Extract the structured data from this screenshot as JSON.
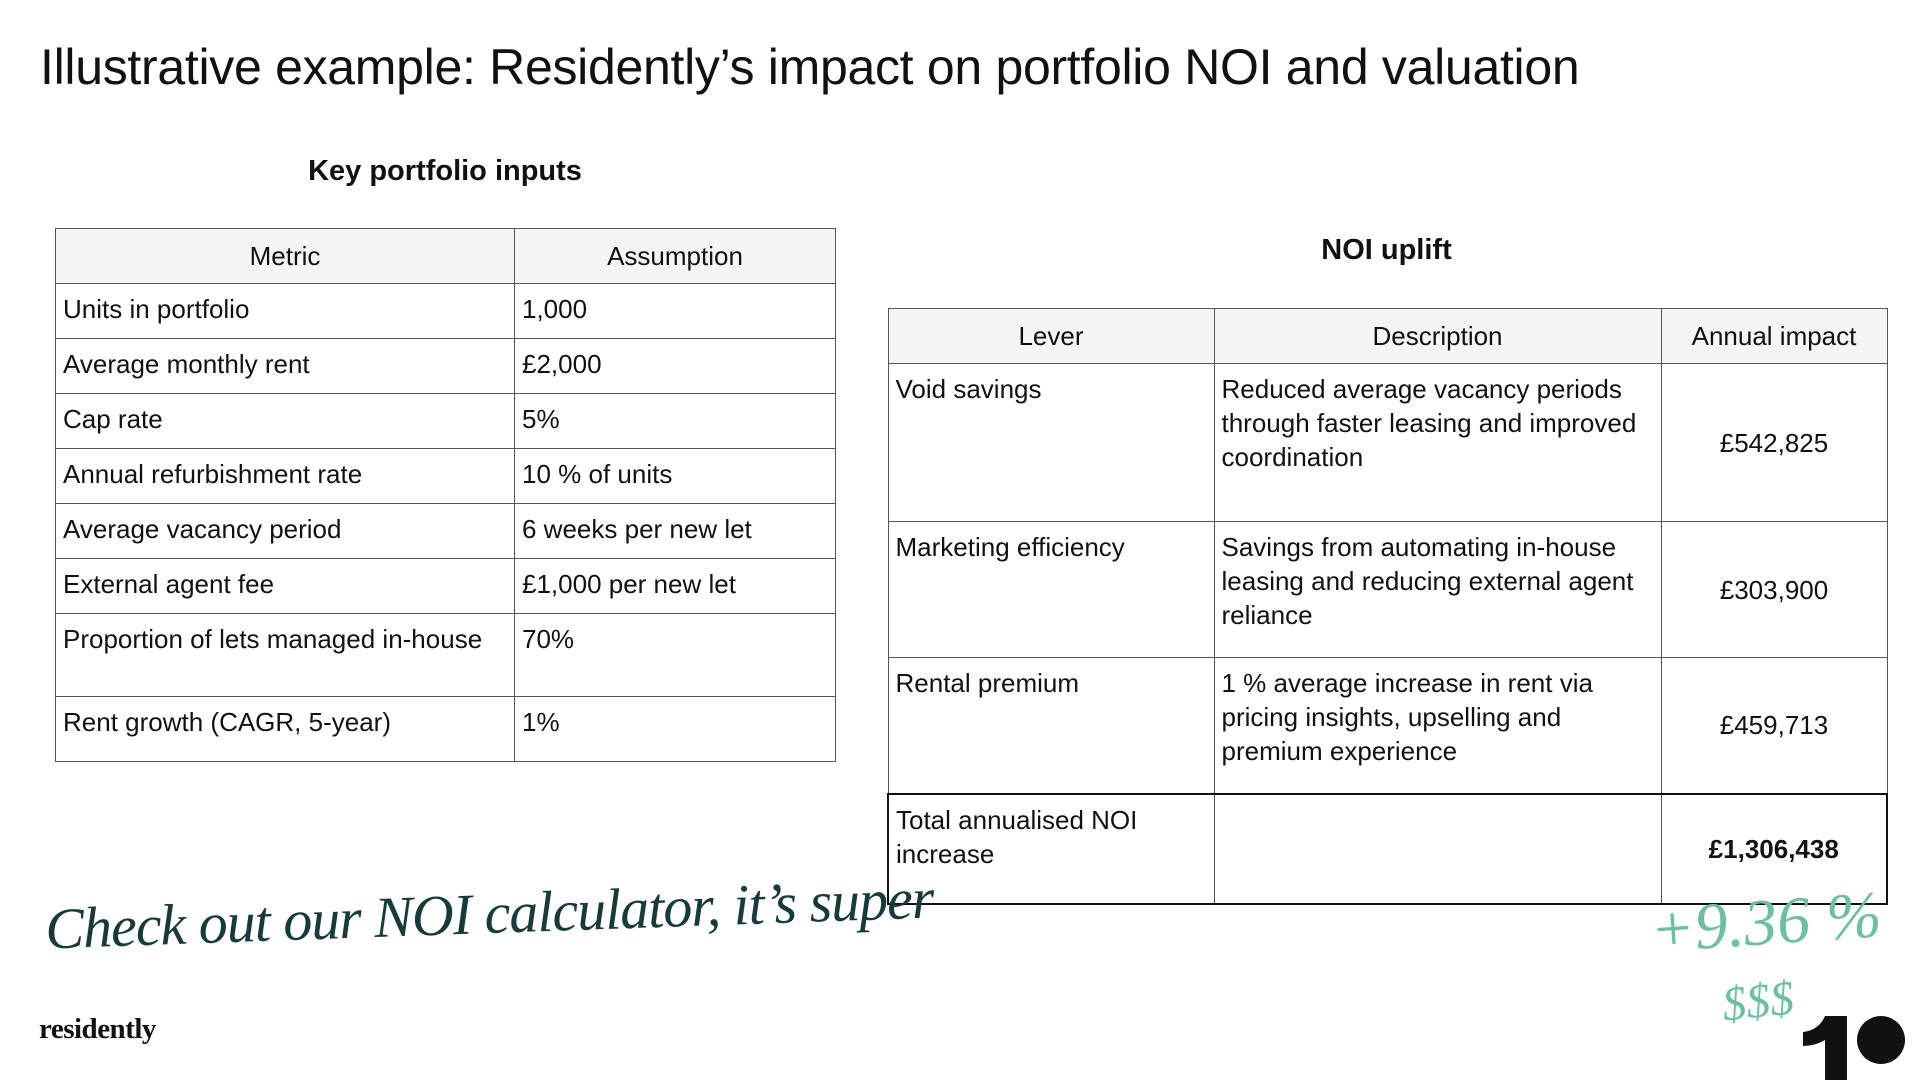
{
  "header": {
    "title": "Illustrative example: Residently’s impact on portfolio NOI and valuation"
  },
  "inputs": {
    "heading": "Key portfolio inputs",
    "columns": [
      "Metric",
      "Assumption"
    ],
    "rows": [
      [
        "Units in portfolio",
        "1,000"
      ],
      [
        "Average monthly rent",
        "£2,000"
      ],
      [
        "Cap rate",
        "5%"
      ],
      [
        "Annual refurbishment rate",
        "10 % of units"
      ],
      [
        "Average vacancy period",
        "6 weeks per new let"
      ],
      [
        "External agent fee",
        "£1,000 per new let"
      ],
      [
        "Proportion of lets managed in-house",
        "70%"
      ],
      [
        "Rent growth (CAGR, 5-year)",
        "1%"
      ]
    ]
  },
  "uplift": {
    "heading": "NOI uplift",
    "columns": [
      "Lever",
      "Description",
      "Annual impact"
    ],
    "rows": [
      [
        "Void savings",
        "Reduced average vacancy periods through faster leasing and improved coordination",
        "£542,825"
      ],
      [
        "Marketing efficiency",
        "Savings from automating in-house leasing and reducing external agent reliance",
        "£303,900"
      ],
      [
        "Rental premium",
        "1 % average increase in rent via pricing insights, upselling and premium experience",
        "£459,713"
      ]
    ],
    "total": {
      "label": "Total annualised NOI increase",
      "value": "£1,306,438"
    }
  },
  "annotations": {
    "note": "Check out our NOI calculator, it’s super",
    "percent": "+9.36 %",
    "symbols": "$$$"
  },
  "footer": {
    "brand": "residently"
  }
}
